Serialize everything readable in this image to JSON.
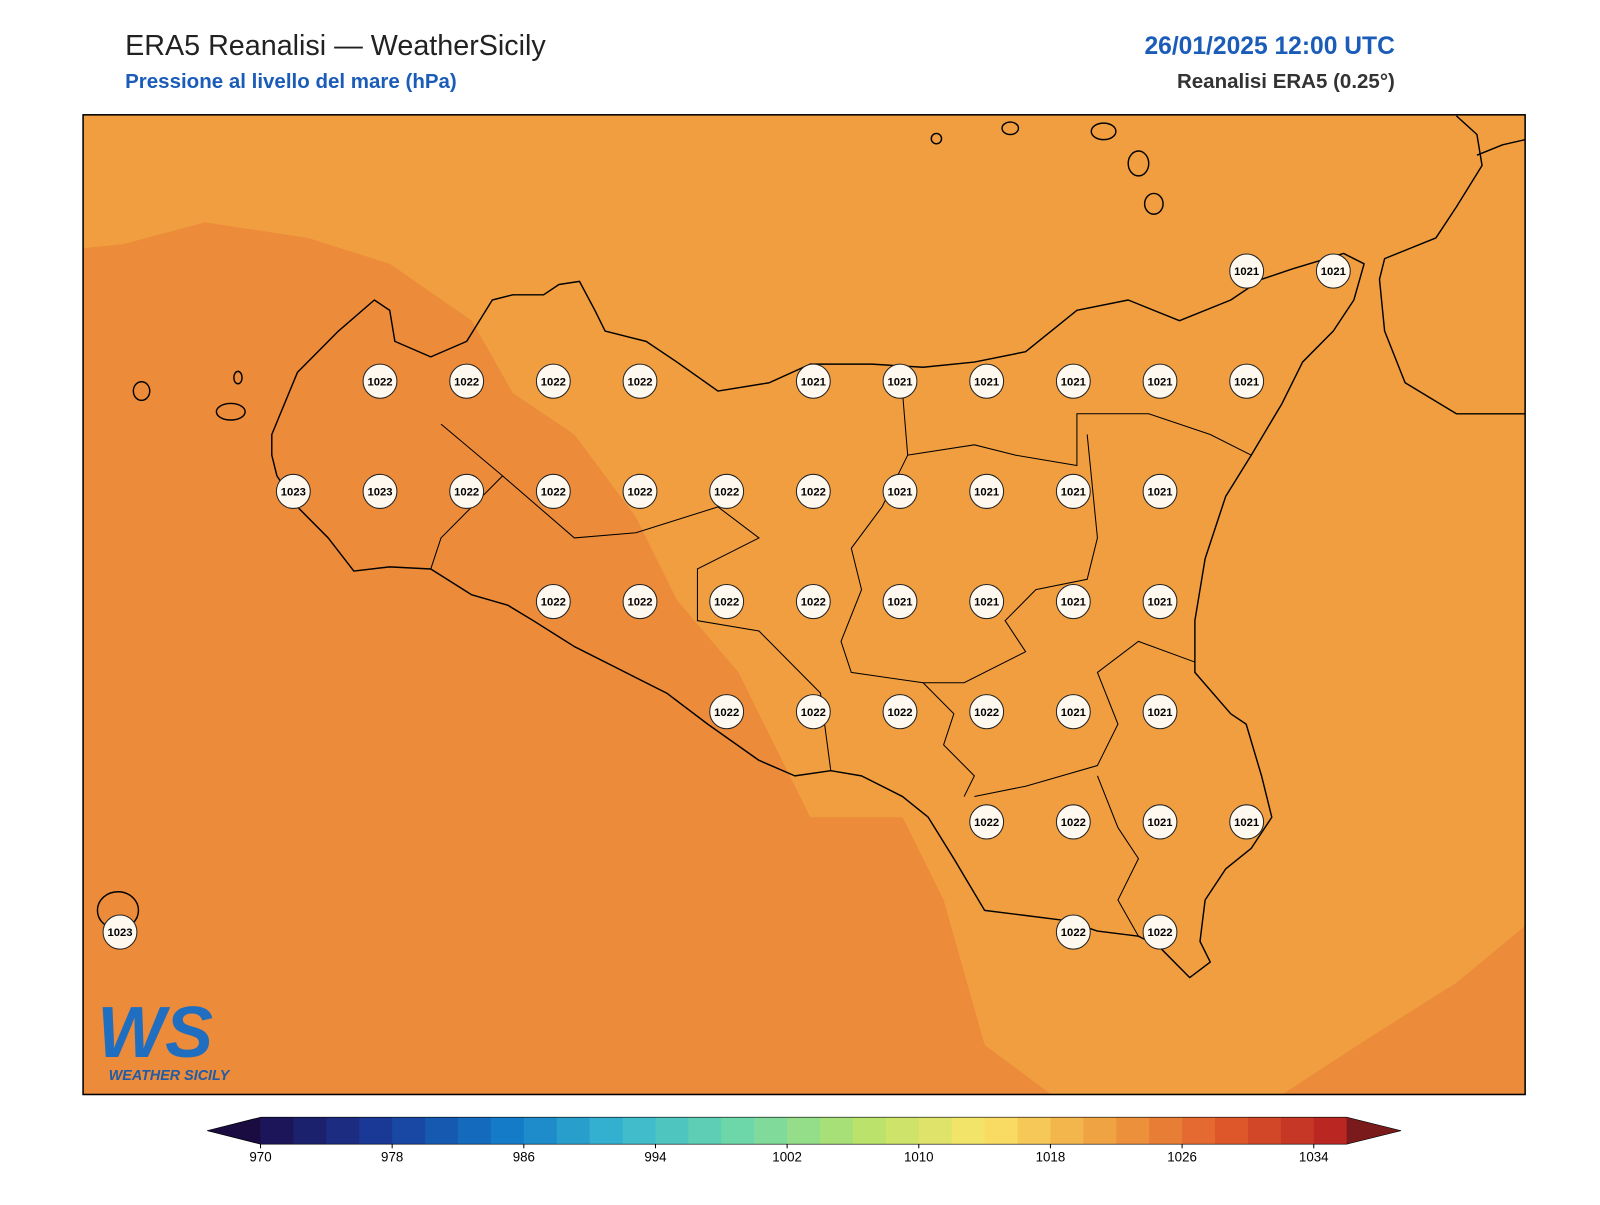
{
  "header": {
    "title": "ERA5 Reanalisi — WeatherSicily",
    "subtitle": "Pressione al livello del mare (hPa)",
    "date": "26/01/2025 12:00 UTC",
    "source": "Reanalisi ERA5 (0.25°)"
  },
  "map": {
    "field_colors": [
      "#f09e40",
      "#ec8b3a"
    ],
    "stations": [
      1021,
      1021,
      1022,
      1022,
      1022,
      1022,
      1021,
      1021,
      1021,
      1021,
      1021,
      1021,
      1023,
      1023,
      1022,
      1022,
      1022,
      1022,
      1022,
      1021,
      1021,
      1021,
      1021,
      1022,
      1022,
      1022,
      1022,
      1021,
      1021,
      1021,
      1021,
      1022,
      1022,
      1022,
      1022,
      1021,
      1021,
      1022,
      1022,
      1021,
      1021,
      1023,
      1022,
      1022
    ]
  },
  "colorbar": {
    "lim": [
      970,
      1036
    ],
    "step": 2,
    "ticks": [
      970,
      978,
      986,
      994,
      1002,
      1010,
      1018,
      1026,
      1034
    ],
    "colormap": [
      "#1e0f4f",
      "#1a3a98",
      "#1278c8",
      "#38b8d0",
      "#70d8a8",
      "#b8e26a",
      "#fae468",
      "#f0a040",
      "#e05a2c",
      "#b41e20"
    ],
    "under_color": "#1a0b40",
    "over_color": "#7a1a1a"
  },
  "logo": {
    "mark": "WS",
    "name": "WEATHER SICILY"
  }
}
